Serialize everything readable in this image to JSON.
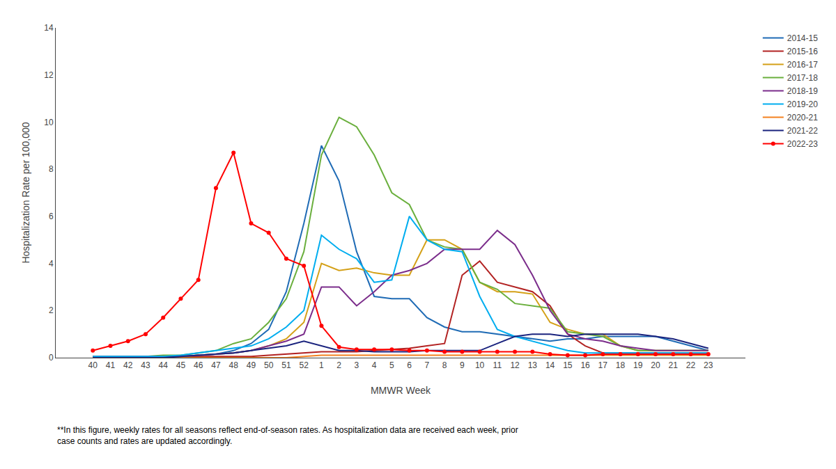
{
  "chart_data": {
    "type": "line",
    "x_label": "MMWR Week",
    "y_label": "Hospitalization Rate per 100,000",
    "annotations": [
      "**In this figure, weekly rates for all seasons reflect end-of-season rates. As hospitalization data are received each week, prior\ncase counts and rates are updated accordingly."
    ],
    "categories": [
      "40",
      "41",
      "42",
      "43",
      "44",
      "45",
      "46",
      "47",
      "48",
      "49",
      "50",
      "51",
      "52",
      "1",
      "2",
      "3",
      "4",
      "5",
      "6",
      "7",
      "8",
      "9",
      "10",
      "11",
      "12",
      "13",
      "14",
      "15",
      "16",
      "17",
      "18",
      "19",
      "20",
      "21",
      "22",
      "23"
    ],
    "ylim": [
      0,
      14
    ],
    "yticks": [
      0,
      2,
      4,
      6,
      8,
      10,
      12,
      14
    ],
    "grid": false,
    "legend": "upper right",
    "series": [
      {
        "name": "2014-15",
        "color": "#1F6BB5",
        "values": [
          0.05,
          0.05,
          0.05,
          0.05,
          0.05,
          0.05,
          0.1,
          0.15,
          0.3,
          0.6,
          1.2,
          2.8,
          5.7,
          9.0,
          7.5,
          4.5,
          2.6,
          2.5,
          2.5,
          1.7,
          1.3,
          1.1,
          1.1,
          1.0,
          0.9,
          0.8,
          0.7,
          0.8,
          0.8,
          0.9,
          0.9,
          0.9,
          0.9,
          0.7,
          0.5,
          0.3
        ]
      },
      {
        "name": "2015-16",
        "color": "#B22222",
        "values": [
          0.05,
          0.05,
          0.05,
          0.05,
          0.05,
          0.05,
          0.05,
          0.05,
          0.05,
          0.05,
          0.1,
          0.15,
          0.2,
          0.25,
          0.25,
          0.25,
          0.3,
          0.35,
          0.4,
          0.5,
          0.6,
          3.5,
          4.1,
          3.2,
          3.0,
          2.8,
          2.2,
          1.0,
          0.5,
          0.2,
          0.2,
          0.2,
          0.2,
          0.2,
          0.2,
          0.2
        ]
      },
      {
        "name": "2016-17",
        "color": "#D4A017",
        "values": [
          0.05,
          0.05,
          0.05,
          0.05,
          0.05,
          0.05,
          0.1,
          0.15,
          0.2,
          0.3,
          0.5,
          0.8,
          1.5,
          4.0,
          3.7,
          3.8,
          3.6,
          3.5,
          3.5,
          5.0,
          5.0,
          4.6,
          3.2,
          2.8,
          2.8,
          2.7,
          1.5,
          1.2,
          1.0,
          1.0,
          0.5,
          0.3,
          0.3,
          0.3,
          0.3,
          0.3
        ]
      },
      {
        "name": "2017-18",
        "color": "#6AAF3D",
        "values": [
          0.05,
          0.05,
          0.05,
          0.05,
          0.1,
          0.1,
          0.2,
          0.3,
          0.6,
          0.8,
          1.5,
          2.5,
          4.5,
          8.6,
          10.2,
          9.8,
          8.6,
          7.0,
          6.5,
          5.0,
          4.7,
          4.6,
          3.2,
          2.9,
          2.3,
          2.2,
          2.1,
          1.1,
          1.0,
          0.9,
          0.5,
          0.3,
          0.3,
          0.3,
          0.3,
          0.3
        ]
      },
      {
        "name": "2018-19",
        "color": "#7B2D8B",
        "values": [
          0.05,
          0.05,
          0.05,
          0.05,
          0.05,
          0.05,
          0.1,
          0.15,
          0.2,
          0.3,
          0.5,
          0.7,
          1.0,
          3.0,
          3.0,
          2.2,
          2.8,
          3.5,
          3.7,
          4.0,
          4.6,
          4.6,
          4.6,
          5.4,
          4.8,
          3.5,
          2.0,
          1.0,
          0.8,
          0.7,
          0.5,
          0.4,
          0.3,
          0.3,
          0.3,
          0.3
        ]
      },
      {
        "name": "2019-20",
        "color": "#00ADEF",
        "values": [
          0.05,
          0.05,
          0.05,
          0.05,
          0.05,
          0.1,
          0.2,
          0.3,
          0.4,
          0.5,
          0.8,
          1.3,
          2.0,
          5.2,
          4.6,
          4.2,
          3.2,
          3.3,
          6.0,
          5.0,
          4.6,
          4.5,
          2.6,
          1.2,
          0.9,
          0.7,
          0.5,
          0.3,
          0.2,
          0.2,
          0.2,
          0.2,
          0.2,
          0.2,
          0.2,
          0.2
        ]
      },
      {
        "name": "2020-21",
        "color": "#F4811F",
        "values": [
          0.0,
          0.0,
          0.0,
          0.0,
          0.0,
          0.0,
          0.0,
          0.0,
          0.0,
          0.0,
          0.0,
          0.0,
          0.05,
          0.1,
          0.1,
          0.1,
          0.1,
          0.1,
          0.1,
          0.1,
          0.1,
          0.1,
          0.1,
          0.1,
          0.1,
          0.1,
          0.1,
          0.1,
          0.1,
          0.1,
          0.1,
          0.1,
          0.1,
          0.1,
          0.1,
          0.1
        ]
      },
      {
        "name": "2021-22",
        "color": "#1A237E",
        "values": [
          0.0,
          0.0,
          0.0,
          0.0,
          0.0,
          0.05,
          0.1,
          0.15,
          0.2,
          0.3,
          0.4,
          0.5,
          0.7,
          0.5,
          0.3,
          0.3,
          0.25,
          0.25,
          0.25,
          0.3,
          0.3,
          0.3,
          0.3,
          0.6,
          0.9,
          1.0,
          1.0,
          0.9,
          1.0,
          1.0,
          1.0,
          1.0,
          0.9,
          0.8,
          0.6,
          0.4
        ]
      },
      {
        "name": "2022-23",
        "color": "#FF0000",
        "marker": "circle",
        "values": [
          0.3,
          0.5,
          0.7,
          1.0,
          1.7,
          2.5,
          3.3,
          7.2,
          8.7,
          5.7,
          5.3,
          4.2,
          3.9,
          1.35,
          0.45,
          0.35,
          0.35,
          0.35,
          0.3,
          0.3,
          0.25,
          0.25,
          0.25,
          0.25,
          0.25,
          0.25,
          0.15,
          0.1,
          0.1,
          0.15,
          0.15,
          0.15,
          0.15,
          0.15,
          0.15,
          0.15
        ]
      }
    ]
  }
}
